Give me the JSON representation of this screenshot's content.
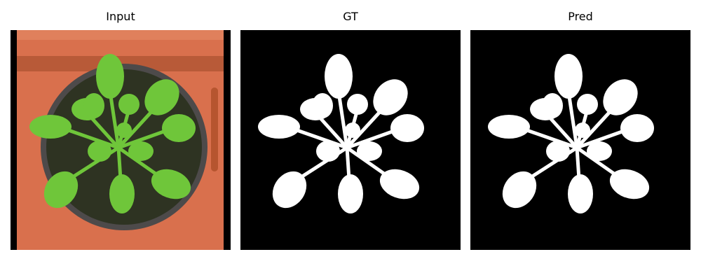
{
  "panels": [
    {
      "title": "Input"
    },
    {
      "title": "GT"
    },
    {
      "title": "Pred"
    }
  ]
}
